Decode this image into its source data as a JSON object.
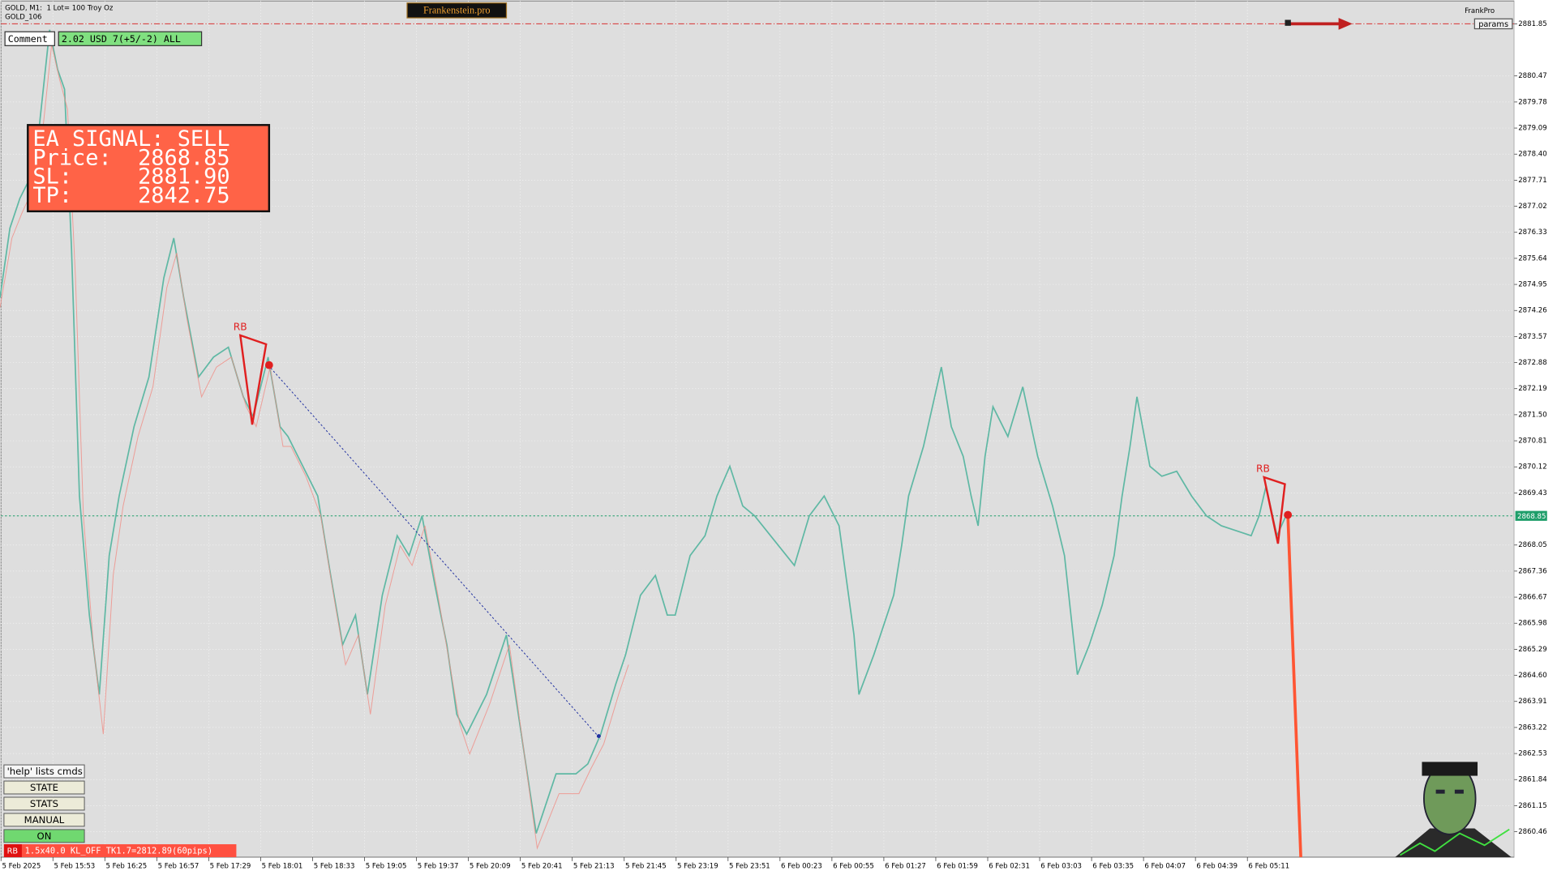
{
  "header": {
    "symbol": "GOLD, M1:  1 Lot= 100 Troy Oz",
    "account": "GOLD_106",
    "brand": "Frankenstein.pro",
    "comment_label": "Comment",
    "comment_value": "2.02 USD 7(+5/-2) ALL",
    "frankpro": "FrankPro",
    "params": "params"
  },
  "signal": {
    "title": "EA SIGNAL: SELL",
    "price": "Price:  2868.85",
    "sl": "SL:     2881.90",
    "tp": "TP:     2842.75"
  },
  "markers": [
    "RB",
    "RB"
  ],
  "price_axis": [
    "2881.85",
    "2880.47",
    "2879.78",
    "2879.09",
    "2878.40",
    "2877.71",
    "2877.02",
    "2876.33",
    "2875.64",
    "2874.95",
    "2874.26",
    "2873.57",
    "2872.88",
    "2872.19",
    "2871.50",
    "2870.81",
    "2870.12",
    "2869.43",
    "2868.05",
    "2867.36",
    "2866.67",
    "2865.98",
    "2865.29",
    "2864.60",
    "2863.91",
    "2863.22",
    "2862.53",
    "2861.84",
    "2861.15",
    "2860.46"
  ],
  "current_price": "2868.85",
  "time_axis": [
    "5 Feb 2025",
    "5 Feb 15:53",
    "5 Feb 16:25",
    "5 Feb 16:57",
    "5 Feb 17:29",
    "5 Feb 18:01",
    "5 Feb 18:33",
    "5 Feb 19:05",
    "5 Feb 19:37",
    "5 Feb 20:09",
    "5 Feb 20:41",
    "5 Feb 21:13",
    "5 Feb 21:45",
    "5 Feb 23:19",
    "5 Feb 23:51",
    "6 Feb 00:23",
    "6 Feb 00:55",
    "6 Feb 01:27",
    "6 Feb 01:59",
    "6 Feb 02:31",
    "6 Feb 03:03",
    "6 Feb 03:35",
    "6 Feb 04:07",
    "6 Feb 04:39",
    "6 Feb 05:11"
  ],
  "buttons": [
    "'help' lists cmds",
    "STATE",
    "STATS",
    "MANUAL",
    "ON"
  ],
  "status": {
    "tag": "RB",
    "text": "1.5x40.0 KL_OFF TK1.7=2812.89(60pips)"
  }
}
